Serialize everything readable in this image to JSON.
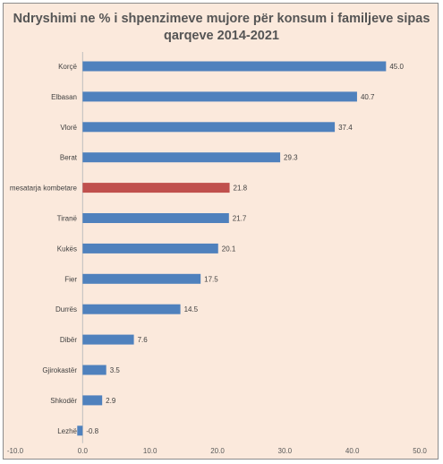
{
  "chart_data": {
    "type": "bar",
    "orientation": "horizontal",
    "title_line1": "Ndryshimi ne % i shpenzimeve mujore për konsum i familjeve sipas",
    "title_line2": "qarqeve 2014-2021",
    "categories": [
      "Korçë",
      "Elbasan",
      "Vlorë",
      "Berat",
      "mesatarja kombetare",
      "Tiranë",
      "Kukës",
      "Fier",
      "Durrës",
      "Dibër",
      "Gjirokastër",
      "Shkodër",
      "Lezhë"
    ],
    "values": [
      45.0,
      40.7,
      37.4,
      29.3,
      21.8,
      21.7,
      20.1,
      17.5,
      14.5,
      7.6,
      3.5,
      2.9,
      -0.8
    ],
    "value_labels": [
      "45.0",
      "40.7",
      "37.4",
      "29.3",
      "21.8",
      "21.7",
      "20.1",
      "17.5",
      "14.5",
      "7.6",
      "3.5",
      "2.9",
      "-0.8"
    ],
    "xlim": [
      -10,
      50
    ],
    "x_ticks": [
      "-10.0",
      "0.0",
      "10.0",
      "20.0",
      "30.0",
      "40.0",
      "50.0"
    ],
    "grid": false,
    "colors": {
      "bar": "#4f81bd",
      "highlight": "#c0504d",
      "background": "#fbe9dc"
    },
    "highlight_category": "mesatarja kombetare"
  }
}
